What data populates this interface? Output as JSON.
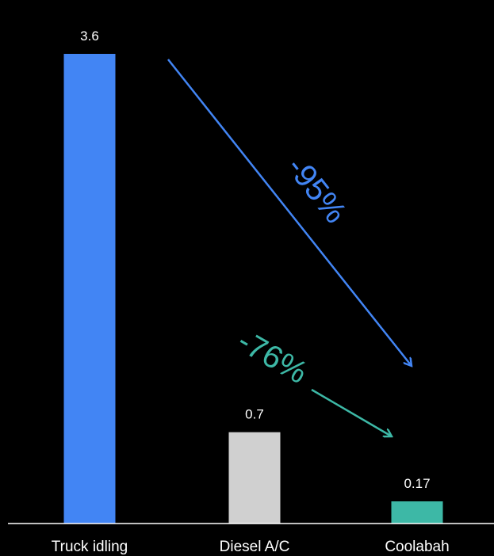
{
  "chart_data": {
    "type": "bar",
    "categories": [
      "Truck idling",
      "Diesel A/C",
      "Coolabah"
    ],
    "values": [
      3.6,
      0.7,
      0.17
    ],
    "value_labels": [
      "3.6",
      "0.7",
      "0.17"
    ],
    "colors": [
      "#4285f4",
      "#d0d0d0",
      "#3db8a6"
    ],
    "ylim": [
      0,
      3.6
    ],
    "grid": false,
    "legend": "none",
    "title": "",
    "xlabel": "",
    "ylabel": "",
    "annotations": [
      {
        "text": "-95%",
        "from_category": "Truck idling",
        "to_category": "Coolabah",
        "color": "#4285f4"
      },
      {
        "text": "-76%",
        "from_category": "Diesel A/C",
        "to_category": "Coolabah",
        "color": "#3db8a6"
      }
    ]
  },
  "colors": {
    "background": "#000000",
    "axis": "#ffffff",
    "text": "#ffffff"
  }
}
